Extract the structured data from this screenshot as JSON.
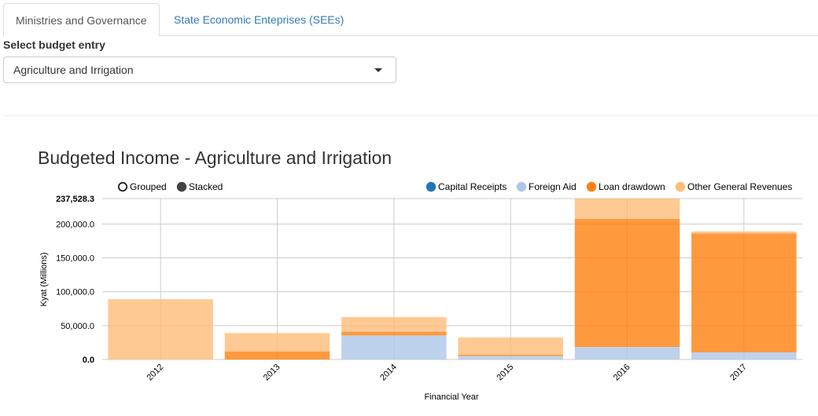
{
  "tabs": [
    {
      "label": "Ministries and Governance",
      "active": true
    },
    {
      "label": "State Economic Enteprises (SEEs)",
      "active": false
    }
  ],
  "budget_select": {
    "label": "Select budget entry",
    "value": "Agriculture and Irrigation"
  },
  "controls": {
    "grouped_label": "Grouped",
    "stacked_label": "Stacked",
    "selected": "Stacked"
  },
  "colors": {
    "Capital Receipts": "#1f77b4",
    "Foreign Aid": "#aec7e8",
    "Loan drawdown": "#ff7f0e",
    "Other General Revenues": "#ffbb78"
  },
  "chart_data": {
    "type": "bar",
    "stacked": true,
    "title": "Budgeted Income - Agriculture and Irrigation",
    "xlabel": "Financial Year",
    "ylabel": "Kyat (Millions)",
    "categories": [
      "2012",
      "2013",
      "2014",
      "2015",
      "2016",
      "2017"
    ],
    "ylim": [
      0,
      237528.3
    ],
    "yticks": [
      {
        "value": 0,
        "label": "0.0"
      },
      {
        "value": 50000,
        "label": "50,000.0"
      },
      {
        "value": 100000,
        "label": "100,000.0"
      },
      {
        "value": 150000,
        "label": "150,000.0"
      },
      {
        "value": 200000,
        "label": "200,000.0"
      },
      {
        "value": 237528.3,
        "label": "237,528.3"
      }
    ],
    "grid": true,
    "legend_position": "top-right",
    "series": [
      {
        "name": "Capital Receipts",
        "values": [
          0,
          0,
          0,
          0,
          0,
          0
        ]
      },
      {
        "name": "Foreign Aid",
        "values": [
          0,
          0,
          35500,
          5000,
          18500,
          10500
        ]
      },
      {
        "name": "Loan drawdown",
        "values": [
          0,
          12000,
          5500,
          2000,
          189000,
          175500
        ]
      },
      {
        "name": "Other General Revenues",
        "values": [
          89000,
          27000,
          21500,
          25500,
          30000,
          3000
        ]
      }
    ]
  }
}
